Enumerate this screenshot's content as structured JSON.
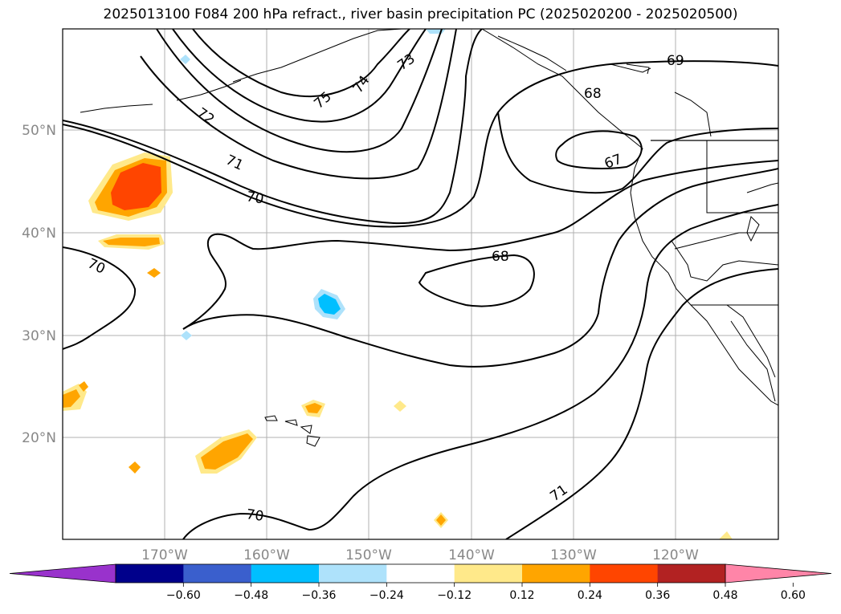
{
  "title": "2025013100 F084 200 hPa refract., river basin precipitation PC (2025020200 - 2025020500)",
  "map": {
    "lon_ticks": [
      "170°W",
      "160°W",
      "150°W",
      "140°W",
      "130°W",
      "120°W"
    ],
    "lat_ticks": [
      "50°N",
      "40°N",
      "30°N",
      "20°N"
    ],
    "contour_labels": [
      "75",
      "74",
      "73",
      "72",
      "71",
      "70",
      "70",
      "70",
      "69",
      "68",
      "68",
      "67",
      "71"
    ]
  },
  "colorbar": {
    "ticks": [
      "−0.60",
      "−0.48",
      "−0.36",
      "−0.24",
      "−0.12",
      "0.12",
      "0.24",
      "0.36",
      "0.48",
      "0.60"
    ],
    "colors": [
      "#9932cc",
      "#00008b",
      "#3a5fcd",
      "#00bfff",
      "#aee2fb",
      "#ffffff",
      "#ffe98a",
      "#ffa500",
      "#ff4500",
      "#b22222",
      "#ff85a8"
    ]
  }
}
